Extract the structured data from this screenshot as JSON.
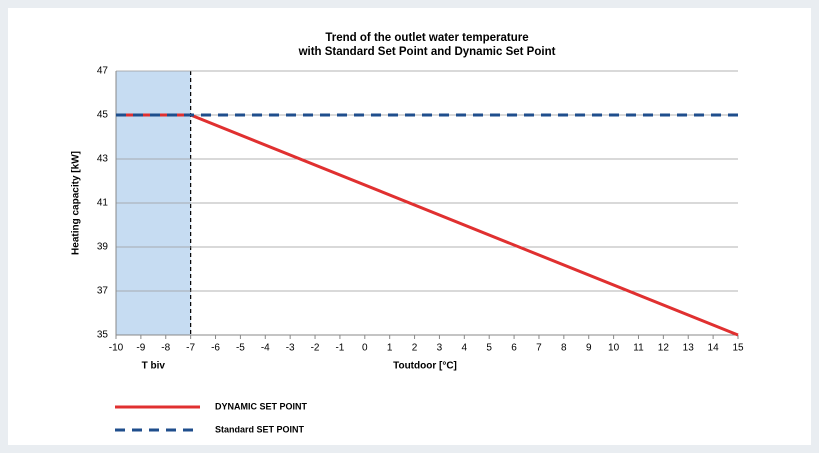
{
  "chart_data": {
    "type": "line",
    "title": [
      "Trend of the outlet water temperature",
      "with Standard Set Point and Dynamic Set Point"
    ],
    "x_label": "Toutdoor [°C]",
    "y_label": "Heating capacity [kW]",
    "xlim": [
      -10,
      15
    ],
    "ylim": [
      35,
      47
    ],
    "xticks": [
      -10,
      -9,
      -8,
      -7,
      -6,
      -5,
      -4,
      -3,
      -2,
      -1,
      0,
      1,
      2,
      3,
      4,
      5,
      6,
      7,
      8,
      9,
      10,
      11,
      12,
      13,
      14,
      15
    ],
    "yticks": [
      35,
      37,
      39,
      41,
      43,
      45,
      47
    ],
    "grid": true,
    "shaded_region": {
      "label": "T biv",
      "xlim": [
        -10,
        -7
      ],
      "color": "#c6dcf2"
    },
    "series": [
      {
        "name": "DYNAMIC SET POINT",
        "color": "#e03030",
        "dashed": false,
        "x": [
          -10,
          -7,
          15
        ],
        "values": [
          45,
          45,
          35
        ]
      },
      {
        "name": "Standard SET POINT",
        "color": "#1f4e8c",
        "dashed": true,
        "x": [
          -10,
          15
        ],
        "values": [
          45,
          45
        ]
      }
    ]
  }
}
